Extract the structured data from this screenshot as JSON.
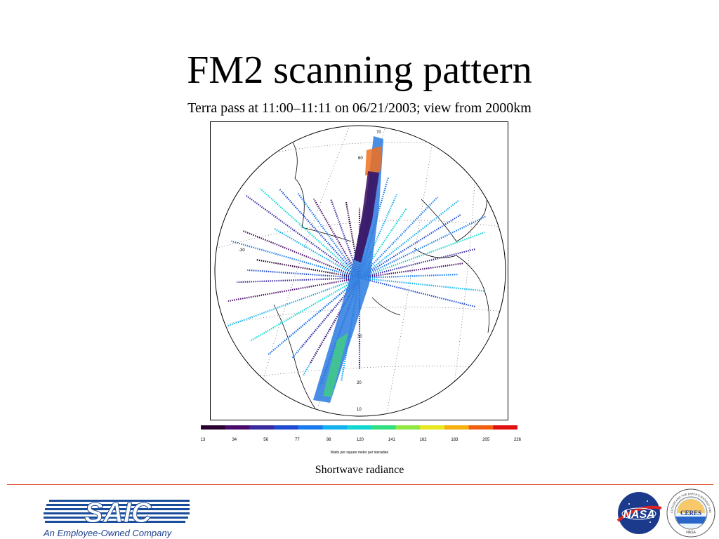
{
  "slide": {
    "title": "FM2 scanning pattern",
    "subtitle": "Terra pass at 11:00–11:11 on 06/21/2003; view from 2000km",
    "caption": "Shortwave radiance"
  },
  "figure": {
    "latitude_labels": [
      "70",
      "60",
      "30",
      "20",
      "10"
    ],
    "longitude_labels": [
      "-30"
    ],
    "colorbar": {
      "ticks": [
        "13",
        "34",
        "56",
        "77",
        "98",
        "120",
        "141",
        "162",
        "183",
        "205",
        "226"
      ],
      "units": "Watts per square meter per steradian",
      "colors": [
        "#2a0030",
        "#4a0a6a",
        "#3a2aa0",
        "#1e4ad0",
        "#1a7af0",
        "#14b0f0",
        "#10d8d0",
        "#30e080",
        "#90e840",
        "#e8e820",
        "#f8b010",
        "#f06010",
        "#e01010"
      ]
    }
  },
  "footer": {
    "saic_logo_text": "SAIC",
    "saic_tagline": "An Employee-Owned Company",
    "nasa_logo_text": "NASA",
    "ceres_logo_text": "CERES",
    "ceres_ring_text": "CLOUDS AND THE EARTH'S RADIANT ENERGY SYSTEM",
    "ceres_bottom_text": "NASA"
  }
}
